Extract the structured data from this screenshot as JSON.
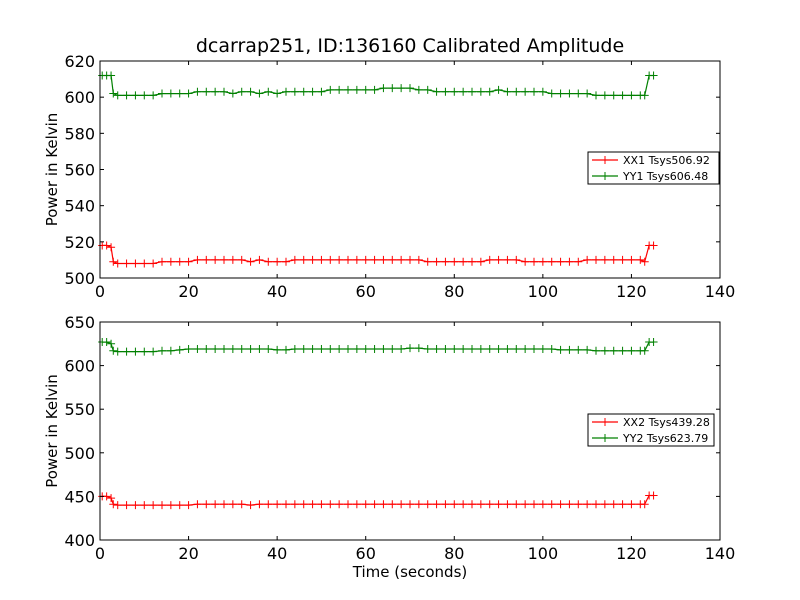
{
  "chart_data": [
    {
      "type": "line",
      "title": "dcarrap251, ID:136160 Calibrated Amplitude",
      "xlabel": "",
      "ylabel": "Power in Kelvin",
      "xlim": [
        0,
        140
      ],
      "ylim": [
        500,
        620
      ],
      "xticks": [
        0,
        20,
        40,
        60,
        80,
        100,
        120,
        140
      ],
      "yticks": [
        500,
        520,
        540,
        560,
        580,
        600,
        620
      ],
      "grid": false,
      "legend_position": "right",
      "series": [
        {
          "name": "XX1 Tsys506.92",
          "color": "#ff0000",
          "marker": "+",
          "x": [
            0.5,
            1.5,
            2.5,
            3,
            4,
            6,
            8,
            10,
            12,
            14,
            16,
            18,
            20,
            22,
            24,
            26,
            28,
            30,
            32,
            34,
            36,
            38,
            40,
            42,
            44,
            46,
            48,
            50,
            52,
            54,
            56,
            58,
            60,
            62,
            64,
            66,
            68,
            70,
            72,
            74,
            76,
            78,
            80,
            82,
            84,
            86,
            88,
            90,
            92,
            94,
            96,
            98,
            100,
            102,
            104,
            106,
            108,
            110,
            112,
            114,
            116,
            118,
            120,
            122,
            123,
            124,
            125
          ],
          "y": [
            518,
            518,
            517,
            509,
            508,
            508,
            508,
            508,
            508,
            509,
            509,
            509,
            509,
            510,
            510,
            510,
            510,
            510,
            510,
            509,
            510,
            509,
            509,
            509,
            510,
            510,
            510,
            510,
            510,
            510,
            510,
            510,
            510,
            510,
            510,
            510,
            510,
            510,
            510,
            509,
            509,
            509,
            509,
            509,
            509,
            509,
            510,
            510,
            510,
            510,
            509,
            509,
            509,
            509,
            509,
            509,
            509,
            510,
            510,
            510,
            510,
            510,
            510,
            510,
            509,
            518,
            518
          ]
        },
        {
          "name": "YY1 Tsys606.48",
          "color": "#008000",
          "marker": "+",
          "x": [
            0.5,
            1.5,
            2.5,
            3,
            4,
            6,
            8,
            10,
            12,
            14,
            16,
            18,
            20,
            22,
            24,
            26,
            28,
            30,
            32,
            34,
            36,
            38,
            40,
            42,
            44,
            46,
            48,
            50,
            52,
            54,
            56,
            58,
            60,
            62,
            64,
            66,
            68,
            70,
            72,
            74,
            76,
            78,
            80,
            82,
            84,
            86,
            88,
            90,
            92,
            94,
            96,
            98,
            100,
            102,
            104,
            106,
            108,
            110,
            112,
            114,
            116,
            118,
            120,
            122,
            123,
            124,
            125
          ],
          "y": [
            612,
            612,
            612,
            602,
            601,
            601,
            601,
            601,
            601,
            602,
            602,
            602,
            602,
            603,
            603,
            603,
            603,
            602,
            603,
            603,
            602,
            603,
            602,
            603,
            603,
            603,
            603,
            603,
            604,
            604,
            604,
            604,
            604,
            604,
            605,
            605,
            605,
            605,
            604,
            604,
            603,
            603,
            603,
            603,
            603,
            603,
            603,
            604,
            603,
            603,
            603,
            603,
            603,
            602,
            602,
            602,
            602,
            602,
            601,
            601,
            601,
            601,
            601,
            601,
            601,
            612,
            612
          ]
        }
      ]
    },
    {
      "type": "line",
      "title": "",
      "xlabel": "Time (seconds)",
      "ylabel": "Power in Kelvin",
      "xlim": [
        0,
        140
      ],
      "ylim": [
        400,
        650
      ],
      "xticks": [
        0,
        20,
        40,
        60,
        80,
        100,
        120,
        140
      ],
      "yticks": [
        400,
        450,
        500,
        550,
        600,
        650
      ],
      "grid": false,
      "legend_position": "right",
      "series": [
        {
          "name": "XX2 Tsys439.28",
          "color": "#ff0000",
          "marker": "+",
          "x": [
            0.5,
            1.5,
            2.5,
            3,
            4,
            6,
            8,
            10,
            12,
            14,
            16,
            18,
            20,
            22,
            24,
            26,
            28,
            30,
            32,
            34,
            36,
            38,
            40,
            42,
            44,
            46,
            48,
            50,
            52,
            54,
            56,
            58,
            60,
            62,
            64,
            66,
            68,
            70,
            72,
            74,
            76,
            78,
            80,
            82,
            84,
            86,
            88,
            90,
            92,
            94,
            96,
            98,
            100,
            102,
            104,
            106,
            108,
            110,
            112,
            114,
            116,
            118,
            120,
            122,
            123,
            124,
            125
          ],
          "y": [
            450,
            450,
            448,
            441,
            440,
            440,
            440,
            440,
            440,
            440,
            440,
            440,
            440,
            441,
            441,
            441,
            441,
            441,
            441,
            440,
            441,
            441,
            441,
            441,
            441,
            441,
            441,
            441,
            441,
            441,
            441,
            441,
            441,
            441,
            441,
            441,
            441,
            441,
            441,
            441,
            441,
            441,
            441,
            441,
            441,
            441,
            441,
            441,
            441,
            441,
            441,
            441,
            441,
            441,
            441,
            441,
            441,
            441,
            441,
            441,
            441,
            441,
            441,
            441,
            441,
            451,
            451
          ]
        },
        {
          "name": "YY2 Tsys623.79",
          "color": "#008000",
          "marker": "+",
          "x": [
            0.5,
            1.5,
            2.5,
            3,
            4,
            6,
            8,
            10,
            12,
            14,
            16,
            18,
            20,
            22,
            24,
            26,
            28,
            30,
            32,
            34,
            36,
            38,
            40,
            42,
            44,
            46,
            48,
            50,
            52,
            54,
            56,
            58,
            60,
            62,
            64,
            66,
            68,
            70,
            72,
            74,
            76,
            78,
            80,
            82,
            84,
            86,
            88,
            90,
            92,
            94,
            96,
            98,
            100,
            102,
            104,
            106,
            108,
            110,
            112,
            114,
            116,
            118,
            120,
            122,
            123,
            124,
            125
          ],
          "y": [
            627,
            627,
            625,
            617,
            616,
            616,
            616,
            616,
            616,
            617,
            617,
            618,
            619,
            619,
            619,
            619,
            619,
            619,
            619,
            619,
            619,
            619,
            618,
            618,
            619,
            619,
            619,
            619,
            619,
            619,
            619,
            619,
            619,
            619,
            619,
            619,
            619,
            620,
            620,
            619,
            619,
            619,
            619,
            619,
            619,
            619,
            619,
            619,
            619,
            619,
            619,
            619,
            619,
            619,
            618,
            618,
            618,
            618,
            617,
            617,
            617,
            617,
            617,
            617,
            617,
            627,
            627
          ]
        }
      ]
    }
  ]
}
